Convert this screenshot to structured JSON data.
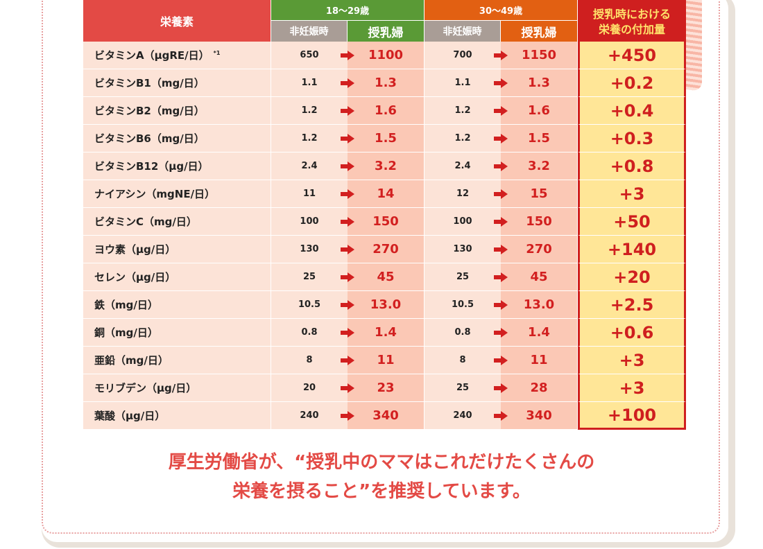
{
  "colors": {
    "header_red": "#e34a45",
    "age_green": "#5a9a36",
    "age_orange": "#e26012",
    "sub_gray": "#a99d96",
    "row_bg": "#fce3d7",
    "lactation_bg": "#fbc8b5",
    "add_bg": "#ffe697",
    "add_border": "#cf1f1f",
    "message_color": "#e34a45"
  },
  "header": {
    "nutrient": "栄養素",
    "age1": "18～29歳",
    "age2": "30～49歳",
    "non_pregnant": "非妊娠時",
    "lactating": "授乳婦",
    "add_line1": "授乳時における",
    "add_line2": "栄養の付加量"
  },
  "rows": [
    {
      "name": "ビタミンA（μgRE/日）",
      "note": "*1",
      "a1": "650",
      "l1": "1100",
      "a2": "700",
      "l2": "1150",
      "add": "+450"
    },
    {
      "name": "ビタミンB1（mg/日）",
      "a1": "1.1",
      "l1": "1.3",
      "a2": "1.1",
      "l2": "1.3",
      "add": "+0.2"
    },
    {
      "name": "ビタミンB2（mg/日）",
      "a1": "1.2",
      "l1": "1.6",
      "a2": "1.2",
      "l2": "1.6",
      "add": "+0.4"
    },
    {
      "name": "ビタミンB6（mg/日）",
      "a1": "1.2",
      "l1": "1.5",
      "a2": "1.2",
      "l2": "1.5",
      "add": "+0.3"
    },
    {
      "name": "ビタミンB12（μg/日）",
      "a1": "2.4",
      "l1": "3.2",
      "a2": "2.4",
      "l2": "3.2",
      "add": "+0.8"
    },
    {
      "name": "ナイアシン（mgNE/日）",
      "a1": "11",
      "l1": "14",
      "a2": "12",
      "l2": "15",
      "add": "+3"
    },
    {
      "name": "ビタミンC（mg/日）",
      "a1": "100",
      "l1": "150",
      "a2": "100",
      "l2": "150",
      "add": "+50"
    },
    {
      "name": "ヨウ素（μg/日）",
      "a1": "130",
      "l1": "270",
      "a2": "130",
      "l2": "270",
      "add": "+140"
    },
    {
      "name": "セレン（μg/日）",
      "a1": "25",
      "l1": "45",
      "a2": "25",
      "l2": "45",
      "add": "+20"
    },
    {
      "name": "鉄（mg/日）",
      "a1": "10.5",
      "l1": "13.0",
      "a2": "10.5",
      "l2": "13.0",
      "add": "+2.5"
    },
    {
      "name": "銅（mg/日）",
      "a1": "0.8",
      "l1": "1.4",
      "a2": "0.8",
      "l2": "1.4",
      "add": "+0.6"
    },
    {
      "name": "亜鉛（mg/日）",
      "a1": "8",
      "l1": "11",
      "a2": "8",
      "l2": "11",
      "add": "+3"
    },
    {
      "name": "モリブデン（μg/日）",
      "a1": "20",
      "l1": "23",
      "a2": "25",
      "l2": "28",
      "add": "+3"
    },
    {
      "name": "葉酸（μg/日）",
      "a1": "240",
      "l1": "340",
      "a2": "240",
      "l2": "340",
      "add": "+100"
    }
  ],
  "message": {
    "line1": "厚生労働省が、“授乳中のママはこれだけたくさんの",
    "line2": "栄養を摂ること”を推奨しています。"
  },
  "icons": {
    "arrow": "right-arrow-icon"
  }
}
